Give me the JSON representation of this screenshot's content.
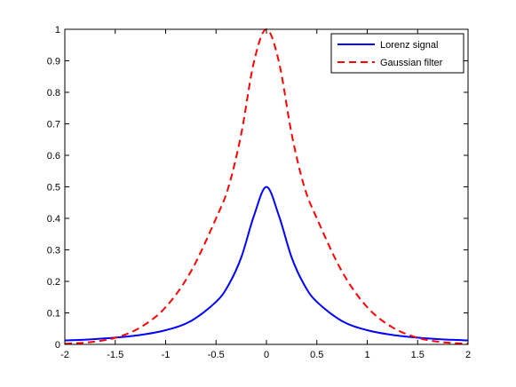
{
  "chart_data": {
    "type": "line",
    "title": "",
    "xlabel": "",
    "ylabel": "",
    "xlim": [
      -2,
      2
    ],
    "ylim": [
      0,
      1
    ],
    "x_ticks": [
      "-2",
      "-1.5",
      "-1",
      "-0.5",
      "0",
      "0.5",
      "1",
      "1.5",
      "2"
    ],
    "y_ticks": [
      "0",
      "0.1",
      "0.2",
      "0.3",
      "0.4",
      "0.5",
      "0.6",
      "0.7",
      "0.8",
      "0.9",
      "1"
    ],
    "grid": false,
    "legend_position": "top-right",
    "x": [
      -2,
      -1.75,
      -1.5,
      -1.25,
      -1,
      -0.75,
      -0.5,
      -0.375,
      -0.25,
      -0.125,
      0,
      0.125,
      0.25,
      0.375,
      0.5,
      0.75,
      1,
      1.25,
      1.5,
      1.75,
      2
    ],
    "series": [
      {
        "name": "Lorenz signal",
        "color": "#0000ff",
        "style": "solid",
        "values": [
          0.0125,
          0.016,
          0.0215,
          0.03,
          0.045,
          0.074,
          0.135,
          0.189,
          0.276,
          0.407,
          0.5,
          0.407,
          0.276,
          0.189,
          0.135,
          0.074,
          0.045,
          0.03,
          0.0215,
          0.016,
          0.0125
        ]
      },
      {
        "name": "Gaussian filter",
        "color": "#ff0000",
        "style": "dashed",
        "values": [
          0.002,
          0.007,
          0.021,
          0.054,
          0.118,
          0.231,
          0.4,
          0.501,
          0.668,
          0.895,
          1,
          0.895,
          0.668,
          0.501,
          0.4,
          0.231,
          0.118,
          0.054,
          0.021,
          0.007,
          0.002
        ]
      }
    ]
  }
}
